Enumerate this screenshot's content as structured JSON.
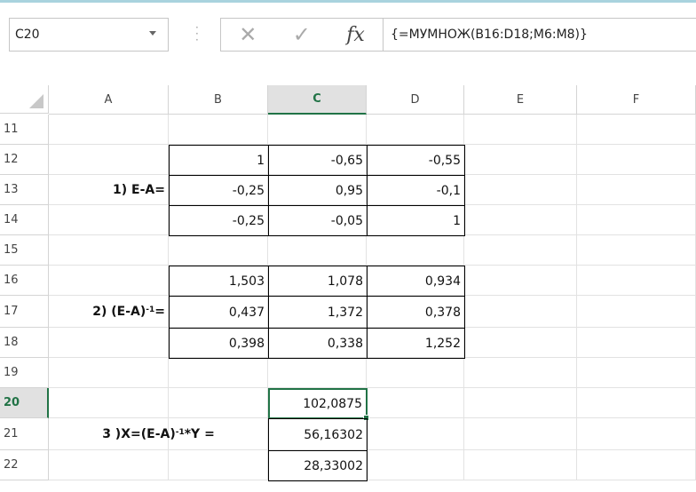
{
  "name_box": "C20",
  "formula": "{=МУМНОЖ(B16:D18;M6:M8)}",
  "columns": [
    "A",
    "B",
    "C",
    "D",
    "E",
    "F"
  ],
  "rows": [
    "11",
    "12",
    "13",
    "14",
    "15",
    "16",
    "17",
    "18",
    "19",
    "20",
    "21",
    "22"
  ],
  "matrix_e_minus_a": {
    "label": "1) E-A=",
    "rows": [
      [
        "1",
        "-0,65",
        "-0,55"
      ],
      [
        "-0,25",
        "0,95",
        "-0,1"
      ],
      [
        "-0,25",
        "-0,05",
        "1"
      ]
    ]
  },
  "inverse": {
    "label_parts": [
      "2) (E-A)",
      "-1",
      "="
    ],
    "rows": [
      [
        "1,503",
        "1,078",
        "0,934"
      ],
      [
        "0,437",
        "1,372",
        "0,378"
      ],
      [
        "0,398",
        "0,338",
        "1,252"
      ]
    ]
  },
  "result": {
    "label_parts": [
      "3 )X=(E-A)",
      "-1",
      "*Y ="
    ],
    "values": [
      "102,0875",
      "56,16302",
      "28,33002"
    ]
  }
}
